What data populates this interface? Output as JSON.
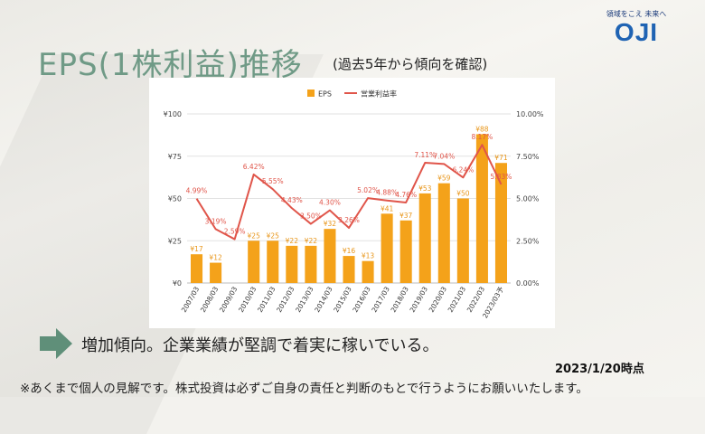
{
  "slide": {
    "title": "EPS(1株利益)推移",
    "subtitle": "(過去5年から傾向を確認)",
    "conclusion": "増加傾向。企業業績が堅調で着実に稼いでいる。",
    "date": "2023/1/20時点",
    "footnote": "※あくまで個人の見解です。株式投資は必ずご自身の責任と判断のもとで行うようにお願いいたします。",
    "logo": {
      "tagline": "領域をこえ 未来へ",
      "text": "OJI",
      "color": "#1f63b3"
    },
    "colors": {
      "title": "#6f9a86",
      "arrow": "#5f8f79"
    }
  },
  "chart_data": {
    "type": "bar",
    "categories": [
      "2007/03",
      "2008/03",
      "2009/03",
      "2010/03",
      "2011/03",
      "2012/03",
      "2013/03",
      "2014/03",
      "2015/03",
      "2016/03",
      "2017/03",
      "2018/03",
      "2019/03",
      "2020/03",
      "2021/03",
      "2022/03",
      "2023/03予"
    ],
    "series": [
      {
        "name": "EPS",
        "type": "bar",
        "axis": "left",
        "color": "#f4a21a",
        "values": [
          17,
          12,
          null,
          25,
          25,
          22,
          22,
          32,
          16,
          13,
          41,
          37,
          53,
          59,
          50,
          88,
          71
        ],
        "labels": [
          "¥17",
          "¥12",
          "",
          "¥25",
          "¥25",
          "¥22",
          "¥22",
          "¥32",
          "¥16",
          "¥13",
          "¥41",
          "¥37",
          "¥53",
          "¥59",
          "¥50",
          "¥88",
          "¥71"
        ]
      },
      {
        "name": "営業利益率",
        "type": "line",
        "axis": "right",
        "color": "#e0554a",
        "values": [
          4.99,
          3.19,
          2.59,
          6.42,
          5.55,
          4.43,
          3.5,
          4.3,
          3.26,
          5.02,
          4.88,
          4.76,
          7.11,
          7.04,
          6.24,
          8.17,
          5.83
        ],
        "labels": [
          "4.99%",
          "3.19%",
          "2.59%",
          "6.42%",
          "5.55%",
          "4.43%",
          "3.50%",
          "4.30%",
          "3.26%",
          "5.02%",
          "4.88%",
          "4.76%",
          "7.11%",
          "7.04%",
          "6.24%",
          "8.17%",
          "5.83%"
        ]
      }
    ],
    "y_left": {
      "ticks": [
        "¥0",
        "¥25",
        "¥50",
        "¥75",
        "¥100"
      ],
      "range": [
        0,
        100
      ]
    },
    "y_right": {
      "ticks": [
        "0.00%",
        "2.50%",
        "5.00%",
        "7.50%",
        "10.00%"
      ],
      "range": [
        0,
        10
      ]
    },
    "grid": true,
    "legend": "top-center"
  }
}
